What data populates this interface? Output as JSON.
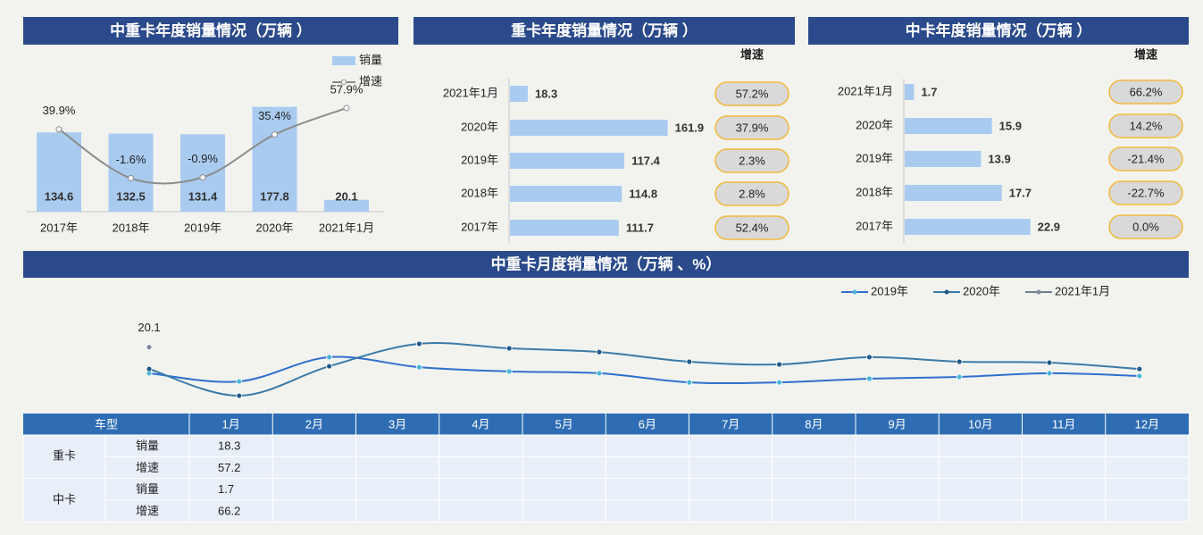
{
  "chart_data": [
    {
      "type": "combo",
      "title": "中重卡年度销量情况（万辆 ）",
      "categories": [
        "2017年",
        "2018年",
        "2019年",
        "2020年",
        "2021年1月"
      ],
      "series": [
        {
          "name": "销量",
          "type": "bar",
          "color": "#a9cbf0",
          "values": [
            134.6,
            132.5,
            131.4,
            177.8,
            20.1
          ]
        },
        {
          "name": "增速",
          "type": "line",
          "axis": "y2",
          "color": "#8c8c8c",
          "values": [
            39.9,
            -1.6,
            -0.9,
            35.4,
            57.9
          ],
          "value_labels": [
            "39.9%",
            "-1.6%",
            "-0.9%",
            "35.4%",
            "57.9%"
          ]
        }
      ],
      "ylim": [
        0,
        200
      ],
      "y2lim": [
        -30,
        70
      ],
      "legend": "top-right"
    },
    {
      "type": "hbar",
      "title": "重卡年度销量情况（万辆 ）",
      "categories": [
        "2021年1月",
        "2020年",
        "2019年",
        "2018年",
        "2017年"
      ],
      "values": [
        18.3,
        161.9,
        117.4,
        114.8,
        111.7
      ],
      "color": "#a9cbf0",
      "xlim": [
        0,
        165
      ],
      "growth_title": "增速",
      "growth": [
        57.2,
        37.9,
        2.3,
        2.8,
        52.4
      ],
      "growth_labels": [
        "57.2%",
        "37.9%",
        "2.3%",
        "2.8%",
        "52.4%"
      ],
      "negative_color": "#e02020"
    },
    {
      "type": "hbar",
      "title": "中卡年度销量情况（万辆 ）",
      "categories": [
        "2021年1月",
        "2020年",
        "2019年",
        "2018年",
        "2017年"
      ],
      "values": [
        1.7,
        15.9,
        13.9,
        17.7,
        22.9
      ],
      "color": "#a9cbf0",
      "xlim": [
        0,
        28
      ],
      "growth_title": "增速",
      "growth": [
        66.2,
        14.2,
        -21.4,
        -22.7,
        0.0
      ],
      "growth_labels": [
        "66.2%",
        "14.2%",
        "-21.4%",
        "-22.7%",
        "0.0%"
      ],
      "negative_color": "#e02020"
    },
    {
      "type": "line",
      "title": "中重卡月度销量情况（万辆 、%）",
      "categories": [
        "1月",
        "2月",
        "3月",
        "4月",
        "5月",
        "6月",
        "7月",
        "8月",
        "9月",
        "10月",
        "11月",
        "12月"
      ],
      "series": [
        {
          "name": "2019年",
          "color": "#2f6fcf",
          "marker": "#4bb6d6",
          "values": [
            11.5,
            8.8,
            16.8,
            13.5,
            12.1,
            11.5,
            8.5,
            8.5,
            9.7,
            10.3,
            11.5,
            10.6
          ]
        },
        {
          "name": "2020年",
          "color": "#3a7aa8",
          "marker": "#1f5a8a",
          "values": [
            12.9,
            4.1,
            13.8,
            21.2,
            19.7,
            18.5,
            15.3,
            14.4,
            16.8,
            15.3,
            15.0,
            12.9
          ]
        },
        {
          "name": "2021年1月",
          "color": "#6f7f8f",
          "marker": "#7f8c99",
          "values": [
            20.1,
            null,
            null,
            null,
            null,
            null,
            null,
            null,
            null,
            null,
            null,
            null
          ],
          "labeled": true
        }
      ],
      "ylim": [
        0,
        35
      ],
      "legend": "top-right"
    }
  ],
  "table": {
    "header": "车型",
    "groups": [
      {
        "name": "重卡",
        "rows": [
          {
            "label": "销量",
            "values": [
              18.3
            ]
          },
          {
            "label": "增速",
            "values": [
              57.2
            ]
          }
        ]
      },
      {
        "name": "中卡",
        "rows": [
          {
            "label": "销量",
            "values": [
              1.7
            ]
          },
          {
            "label": "增速",
            "values": [
              66.2
            ]
          }
        ]
      }
    ]
  }
}
